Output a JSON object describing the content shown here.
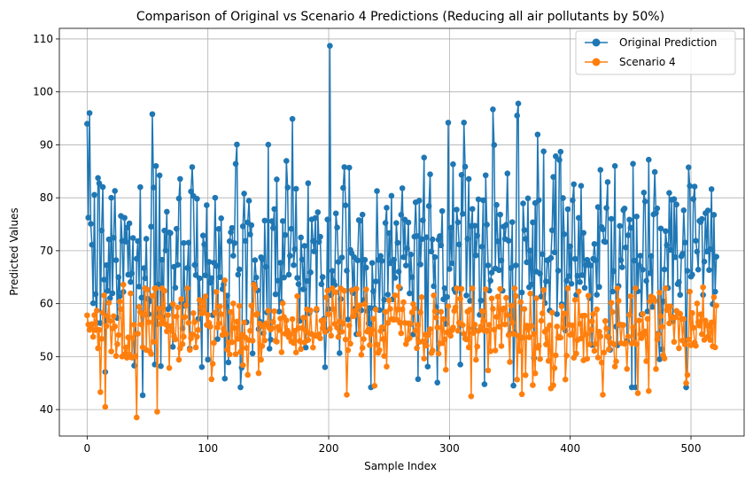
{
  "chart_data": {
    "type": "line",
    "title": "Comparison of Original vs Scenario 4 Predictions (Reducing all air pollutants by 50%)",
    "xlabel": "Sample Index",
    "ylabel": "Predicted Values",
    "xlim": [
      -23,
      544
    ],
    "ylim": [
      35,
      112
    ],
    "x_ticks": [
      0,
      100,
      200,
      300,
      400,
      500
    ],
    "y_ticks": [
      40,
      50,
      60,
      70,
      80,
      90,
      100,
      110
    ],
    "grid": true,
    "legend_position": "top-right",
    "n_points": 522,
    "series": [
      {
        "name": "Original Prediction",
        "color": "#1f77b4",
        "marker": "circle",
        "range": [
          42.7,
          108.7
        ],
        "mean": 69.0,
        "peaks": [
          [
            2,
            96.0
          ],
          [
            57,
            86.0
          ],
          [
            87,
            85.8
          ],
          [
            170,
            94.9
          ],
          [
            201,
            108.7
          ],
          [
            213,
            85.8
          ],
          [
            217,
            85.7
          ],
          [
            312,
            94.2
          ],
          [
            336,
            96.7
          ],
          [
            357,
            97.8
          ],
          [
            392,
            88.7
          ],
          [
            437,
            86.0
          ],
          [
            465,
            87.2
          ]
        ],
        "troughs": [
          [
            15,
            47.1
          ],
          [
            46,
            42.7
          ],
          [
            117,
            48.9
          ],
          [
            197,
            48.0
          ],
          [
            290,
            45.1
          ],
          [
            309,
            48.5
          ],
          [
            474,
            49.5
          ]
        ]
      },
      {
        "name": "Scenario 4",
        "color": "#ff7f0e",
        "marker": "circle",
        "range": [
          38.5,
          64.4
        ],
        "mean": 55.5,
        "peaks": [
          [
            30,
            63.6
          ],
          [
            114,
            64.4
          ],
          [
            138,
            63.6
          ],
          [
            203,
            62.9
          ],
          [
            258,
            63.2
          ],
          [
            310,
            62.8
          ],
          [
            378,
            62.6
          ],
          [
            510,
            63.1
          ]
        ],
        "troughs": [
          [
            11,
            43.3
          ],
          [
            15,
            40.5
          ],
          [
            41,
            38.5
          ],
          [
            58,
            39.6
          ],
          [
            215,
            42.8
          ],
          [
            318,
            42.5
          ],
          [
            360,
            42.9
          ],
          [
            386,
            44.6
          ],
          [
            427,
            42.8
          ],
          [
            456,
            43.1
          ]
        ]
      }
    ]
  }
}
